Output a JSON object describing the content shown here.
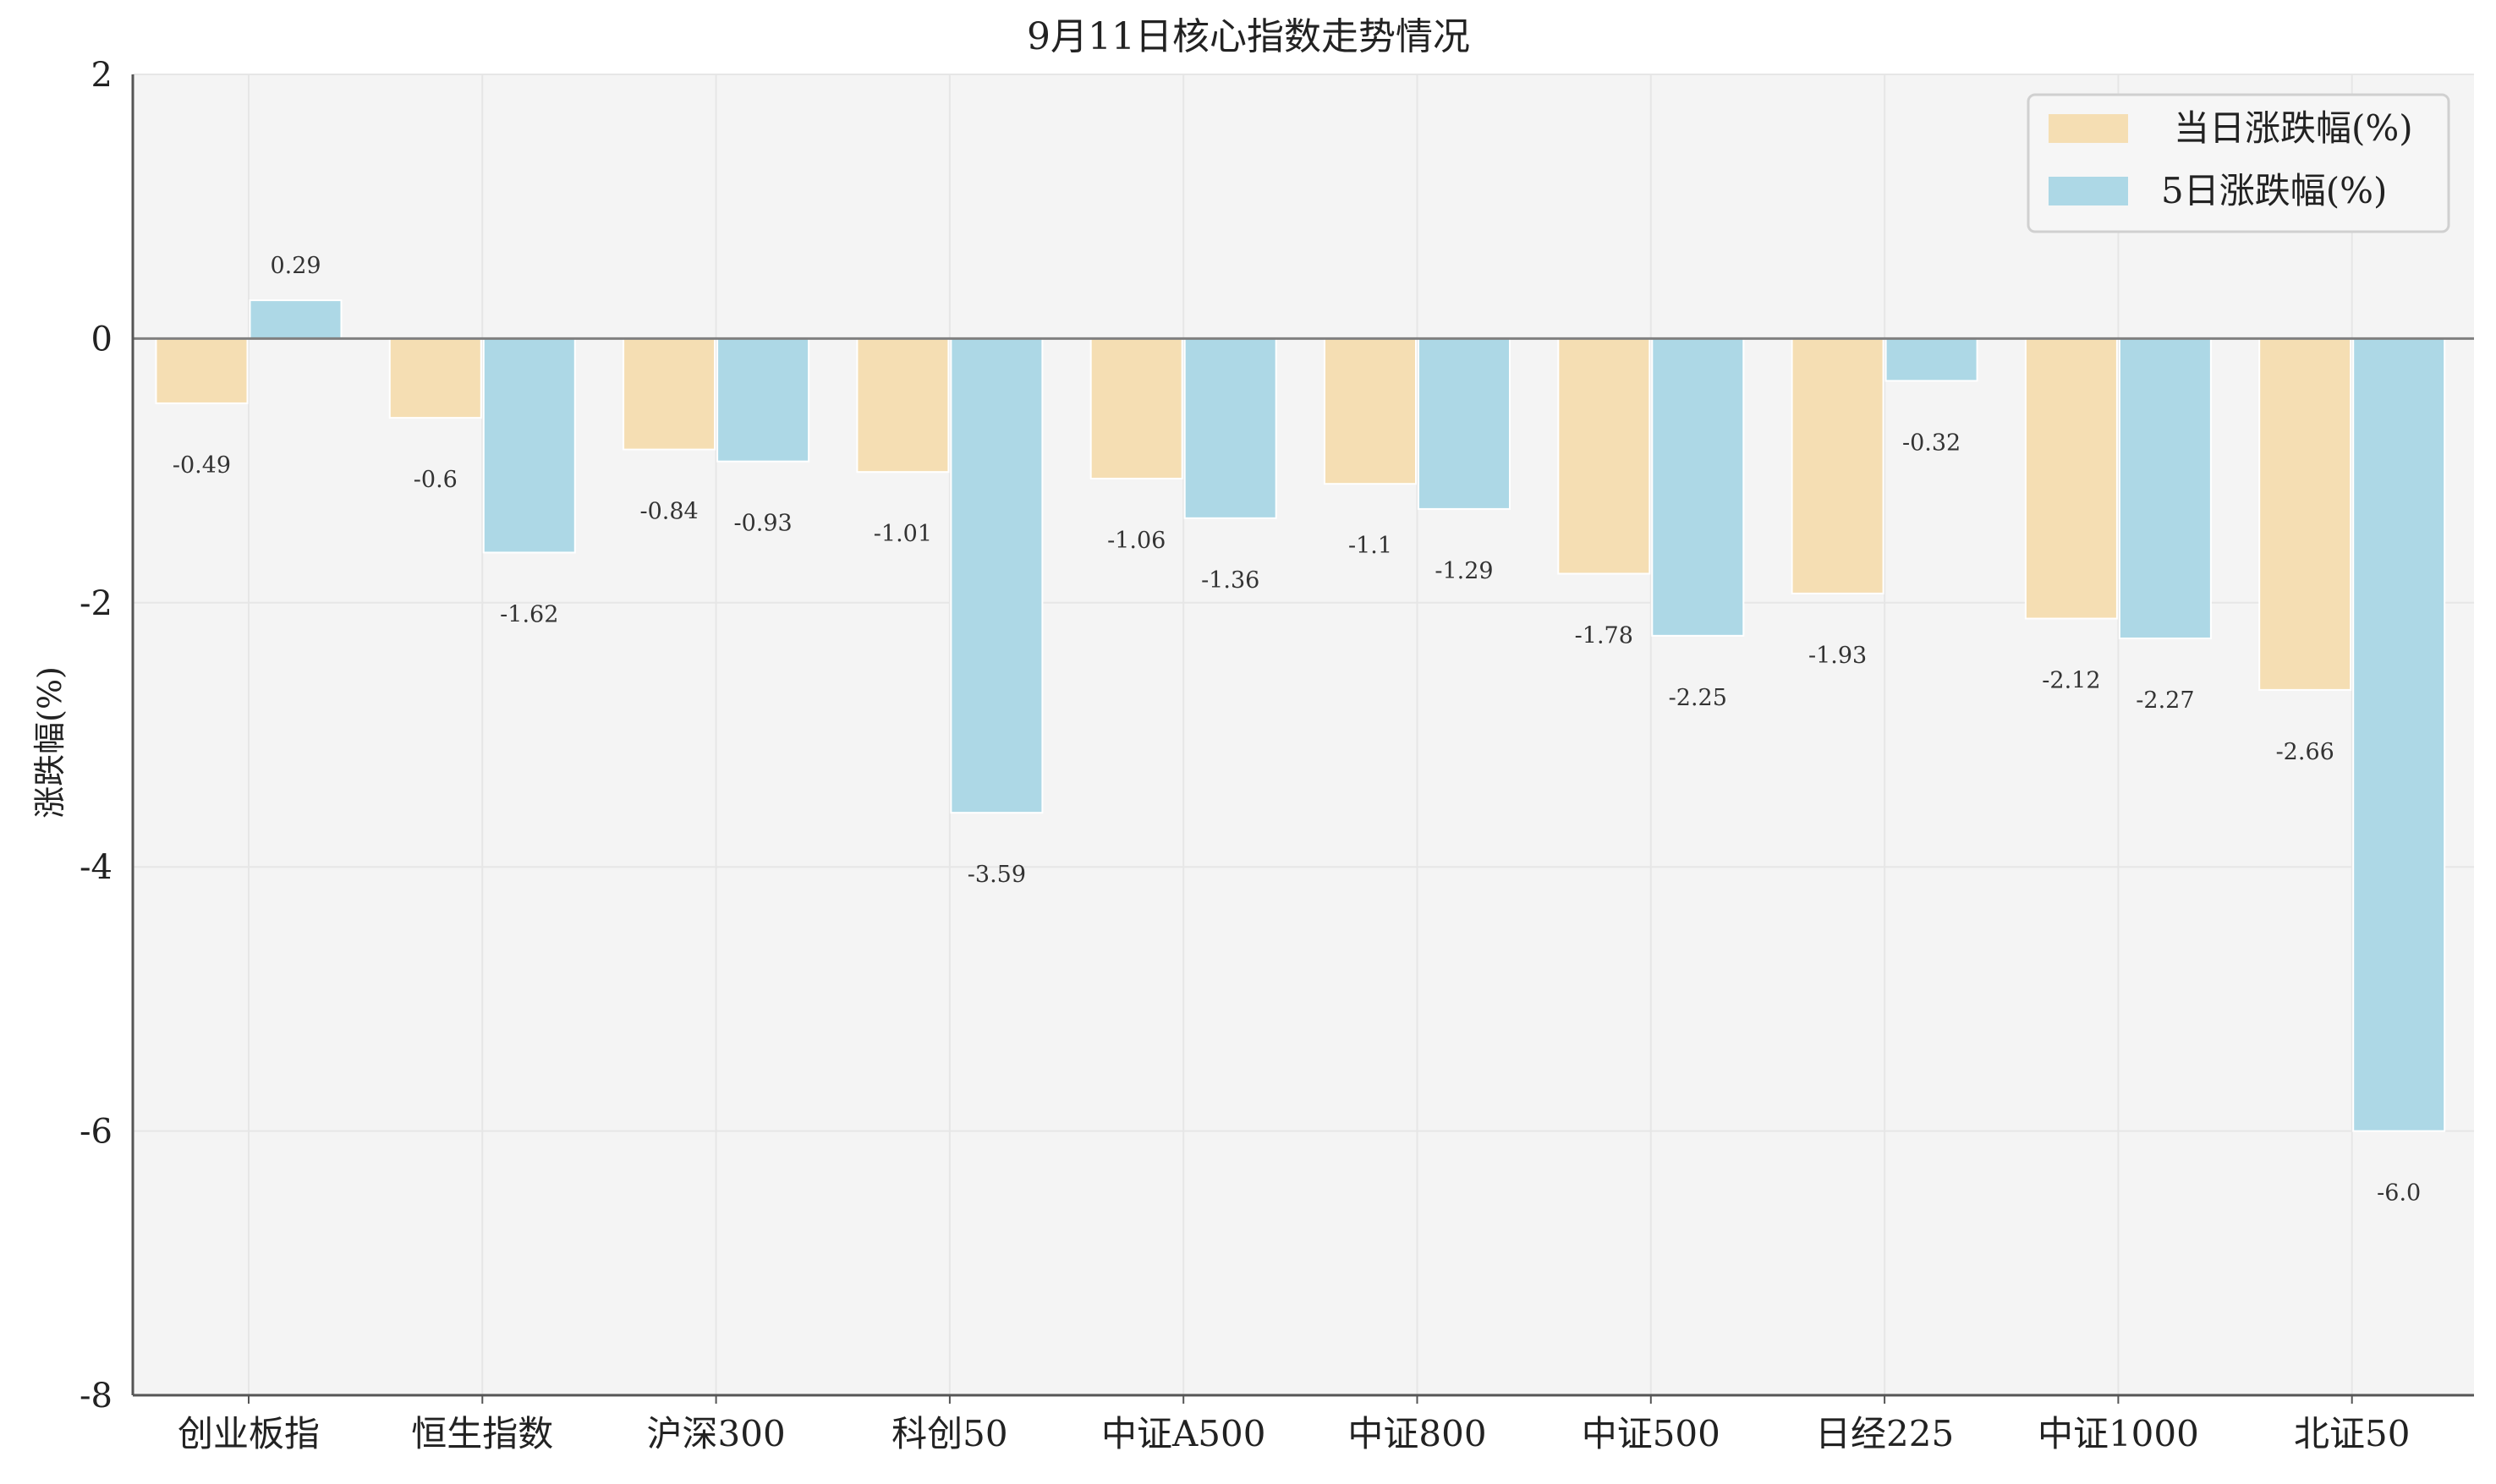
{
  "chart_data": {
    "type": "bar",
    "title": "9月11日核心指数走势情况",
    "xlabel": "",
    "ylabel": "涨跌幅(%)",
    "ylim": [
      -8,
      2
    ],
    "yticks": [
      2,
      0,
      -2,
      -4,
      -6,
      -8
    ],
    "grid": true,
    "legend_position": "top-right",
    "categories": [
      "创业板指",
      "恒生指数",
      "沪深300",
      "科创50",
      "中证A500",
      "中证800",
      "中证500",
      "日经225",
      "中证1000",
      "北证50"
    ],
    "series": [
      {
        "name": "当日涨跌幅(%)",
        "color": "#f5deb3",
        "values": [
          -0.49,
          -0.6,
          -0.84,
          -1.01,
          -1.06,
          -1.1,
          -1.78,
          -1.93,
          -2.12,
          -2.66
        ],
        "labels": [
          "-0.49",
          "-0.6",
          "-0.84",
          "-1.01",
          "-1.06",
          "-1.1",
          "-1.78",
          "-1.93",
          "-2.12",
          "-2.66"
        ]
      },
      {
        "name": "5日涨跌幅(%)",
        "color": "#add8e6",
        "values": [
          0.29,
          -1.62,
          -0.93,
          -3.59,
          -1.36,
          -1.29,
          -2.25,
          -0.32,
          -2.27,
          -6.0
        ],
        "labels": [
          "0.29",
          "-1.62",
          "-0.93",
          "-3.59",
          "-1.36",
          "-1.29",
          "-2.25",
          "-0.32",
          "-2.27",
          "-6.0"
        ]
      }
    ],
    "colors": {
      "plot_background": "#f4f4f4",
      "grid": "#e6e6e6",
      "axis": "#555555",
      "zero_line": "#808080"
    }
  }
}
